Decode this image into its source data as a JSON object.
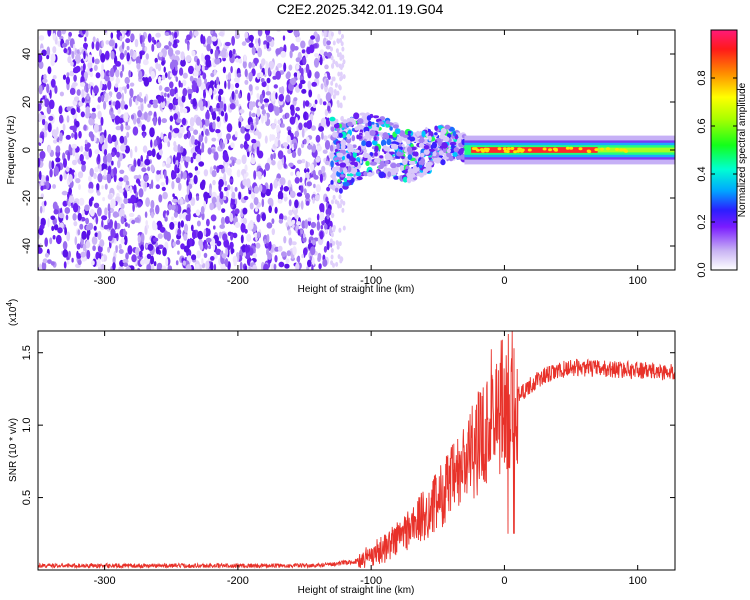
{
  "title": "C2E2.2025.342.01.19.G04",
  "chart_data": [
    {
      "type": "heatmap",
      "name": "spectrogram",
      "xlabel": "Height of straight line (km)",
      "ylabel": "Frequency (Hz)",
      "xlim": [
        -350,
        128
      ],
      "ylim": [
        -50,
        50
      ],
      "xticks": [
        -300,
        -200,
        -100,
        0,
        100
      ],
      "yticks": [
        -40,
        -20,
        0,
        20,
        40
      ],
      "colorbar": {
        "label": "Normalized spectral amplitude",
        "range": [
          0,
          1
        ],
        "ticks": [
          0.0,
          0.2,
          0.4,
          0.6,
          0.8
        ],
        "tick_labels": [
          "0.0",
          "0.2",
          "0.4",
          "0.6",
          "0.8"
        ]
      },
      "regions": [
        {
          "name": "noise-scatter",
          "x_range": [
            -350,
            -130
          ],
          "freq_range": [
            -50,
            50
          ],
          "amplitude": 0.1
        },
        {
          "name": "noise-tail",
          "x_range": [
            -130,
            -120
          ],
          "freq_range": [
            -50,
            50
          ],
          "amplitude": 0.05
        },
        {
          "name": "signal-onset",
          "x_range": [
            -130,
            -30
          ],
          "freq_range": [
            -15,
            15
          ],
          "amplitude": 0.3
        },
        {
          "name": "carrier-line",
          "x_range": [
            -30,
            128
          ],
          "freq_range": [
            -2,
            2
          ],
          "amplitude": 0.95
        }
      ]
    },
    {
      "type": "line",
      "name": "snr",
      "xlabel": "Height of straight line (km)",
      "ylabel": "SNR (10 * v/v)",
      "y_multiplier_label": "(x10",
      "y_multiplier_exp": "4",
      "y_multiplier_close": ")",
      "xlim": [
        -350,
        128
      ],
      "ylim": [
        0,
        1.65
      ],
      "xticks": [
        -300,
        -200,
        -100,
        0,
        100
      ],
      "yticks": [
        0.5,
        1.0,
        1.5
      ],
      "ytick_labels": [
        "0.5",
        "1.0",
        "1.5"
      ],
      "color": "#e8322a",
      "profile": [
        [
          -350,
          0.03
        ],
        [
          -200,
          0.03
        ],
        [
          -140,
          0.03
        ],
        [
          -110,
          0.06
        ],
        [
          -90,
          0.15
        ],
        [
          -70,
          0.3
        ],
        [
          -55,
          0.42
        ],
        [
          -45,
          0.55
        ],
        [
          -35,
          0.65
        ],
        [
          -25,
          0.8
        ],
        [
          -15,
          0.95
        ],
        [
          -8,
          1.05
        ],
        [
          0,
          1.1
        ],
        [
          10,
          1.2
        ],
        [
          20,
          1.28
        ],
        [
          30,
          1.34
        ],
        [
          50,
          1.4
        ],
        [
          70,
          1.39
        ],
        [
          100,
          1.38
        ],
        [
          128,
          1.36
        ]
      ]
    }
  ]
}
